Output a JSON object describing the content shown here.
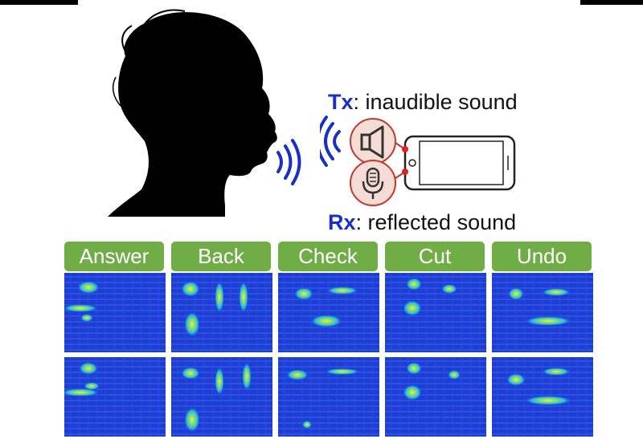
{
  "tx": {
    "tag": "Tx",
    "text": ": inaudible sound"
  },
  "rx": {
    "tag": "Rx",
    "text": ": reflected sound"
  },
  "commands": [
    "Answer",
    "Back",
    "Check",
    "Cut",
    "Undo"
  ],
  "colors": {
    "label_accent": "#1a2fc8",
    "button_green": "#70ad47",
    "icon_red": "#c0392b",
    "icon_fill": "#f6dcd6",
    "spectrogram_base": "#1f3dd4",
    "wave_blue": "#1a2fc8"
  },
  "icons": [
    "person-silhouette",
    "sound-waves",
    "speaker-icon",
    "microphone-icon",
    "smartphone-icon"
  ]
}
